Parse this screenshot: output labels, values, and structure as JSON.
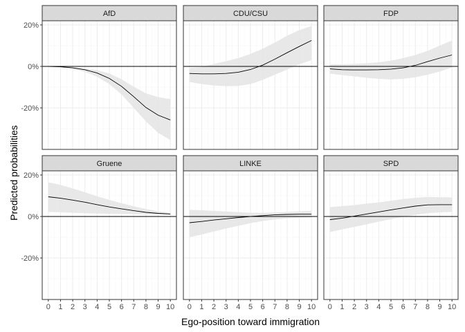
{
  "chart_data": {
    "type": "line",
    "xlabel": "Ego-position toward immigration",
    "ylabel": "Predicted probabilities",
    "x": [
      0,
      1,
      2,
      3,
      4,
      5,
      6,
      7,
      8,
      9,
      10
    ],
    "x_tick_labels": [
      "0",
      "1",
      "2",
      "3",
      "4",
      "5",
      "6",
      "7",
      "8",
      "9",
      "10"
    ],
    "xlim": [
      -0.5,
      10.5
    ],
    "ylim": [
      -0.4,
      0.22
    ],
    "y_ticks": [
      0.2,
      0.0,
      -0.2
    ],
    "y_tick_labels": [
      "20%",
      "0%",
      "-20%"
    ],
    "reference_line": 0,
    "grid": true,
    "panels": [
      {
        "name": "AfD",
        "estimate": [
          0.0,
          -0.002,
          -0.007,
          -0.016,
          -0.032,
          -0.058,
          -0.096,
          -0.146,
          -0.198,
          -0.235,
          -0.258
        ],
        "lower": [
          0.0,
          -0.004,
          -0.012,
          -0.026,
          -0.05,
          -0.085,
          -0.135,
          -0.2,
          -0.265,
          -0.32,
          -0.355
        ],
        "upper": [
          0.0,
          -0.001,
          -0.004,
          -0.01,
          -0.018,
          -0.034,
          -0.062,
          -0.098,
          -0.13,
          -0.148,
          -0.158
        ]
      },
      {
        "name": "CDU/CSU",
        "estimate": [
          -0.034,
          -0.036,
          -0.036,
          -0.034,
          -0.028,
          -0.015,
          0.006,
          0.035,
          0.066,
          0.096,
          0.125
        ],
        "lower": [
          -0.075,
          -0.085,
          -0.092,
          -0.095,
          -0.094,
          -0.085,
          -0.065,
          -0.04,
          -0.015,
          0.01,
          0.03
        ],
        "upper": [
          -0.008,
          -0.003,
          0.012,
          0.025,
          0.04,
          0.06,
          0.085,
          0.115,
          0.148,
          0.175,
          0.195
        ]
      },
      {
        "name": "FDP",
        "estimate": [
          -0.012,
          -0.016,
          -0.017,
          -0.017,
          -0.016,
          -0.013,
          -0.007,
          0.005,
          0.023,
          0.04,
          0.055
        ],
        "lower": [
          -0.035,
          -0.042,
          -0.048,
          -0.055,
          -0.06,
          -0.063,
          -0.06,
          -0.052,
          -0.04,
          -0.025,
          -0.005
        ],
        "upper": [
          0.01,
          0.01,
          0.012,
          0.015,
          0.02,
          0.028,
          0.04,
          0.055,
          0.075,
          0.1,
          0.125
        ]
      },
      {
        "name": "Gruene",
        "estimate": [
          0.095,
          0.088,
          0.079,
          0.069,
          0.057,
          0.046,
          0.037,
          0.028,
          0.02,
          0.015,
          0.012
        ],
        "lower": [
          0.022,
          0.02,
          0.018,
          0.016,
          0.014,
          0.013,
          0.012,
          0.011,
          0.01,
          0.01,
          0.009
        ],
        "upper": [
          0.165,
          0.152,
          0.135,
          0.117,
          0.097,
          0.08,
          0.064,
          0.049,
          0.036,
          0.025,
          0.018
        ]
      },
      {
        "name": "LINKE",
        "estimate": [
          -0.03,
          -0.024,
          -0.017,
          -0.011,
          -0.005,
          0.0,
          0.004,
          0.008,
          0.01,
          0.011,
          0.011
        ],
        "lower": [
          -0.1,
          -0.087,
          -0.072,
          -0.058,
          -0.045,
          -0.032,
          -0.022,
          -0.014,
          -0.009,
          -0.006,
          -0.005
        ],
        "upper": [
          0.032,
          0.03,
          0.027,
          0.024,
          0.021,
          0.018,
          0.018,
          0.019,
          0.022,
          0.025,
          0.028
        ]
      },
      {
        "name": "SPD",
        "estimate": [
          -0.015,
          -0.008,
          0.002,
          0.012,
          0.022,
          0.032,
          0.041,
          0.05,
          0.056,
          0.057,
          0.057
        ],
        "lower": [
          -0.075,
          -0.062,
          -0.05,
          -0.038,
          -0.025,
          -0.013,
          -0.002,
          0.008,
          0.016,
          0.02,
          0.022
        ],
        "upper": [
          0.045,
          0.05,
          0.055,
          0.062,
          0.068,
          0.076,
          0.084,
          0.09,
          0.094,
          0.093,
          0.092
        ]
      }
    ],
    "colors": {
      "strip_background": "#d9d9d9",
      "panel_border": "#333333",
      "grid_major": "#ebebeb",
      "grid_minor": "#f5f5f5",
      "ribbon": "#e6e6e6",
      "line": "#000000"
    }
  }
}
